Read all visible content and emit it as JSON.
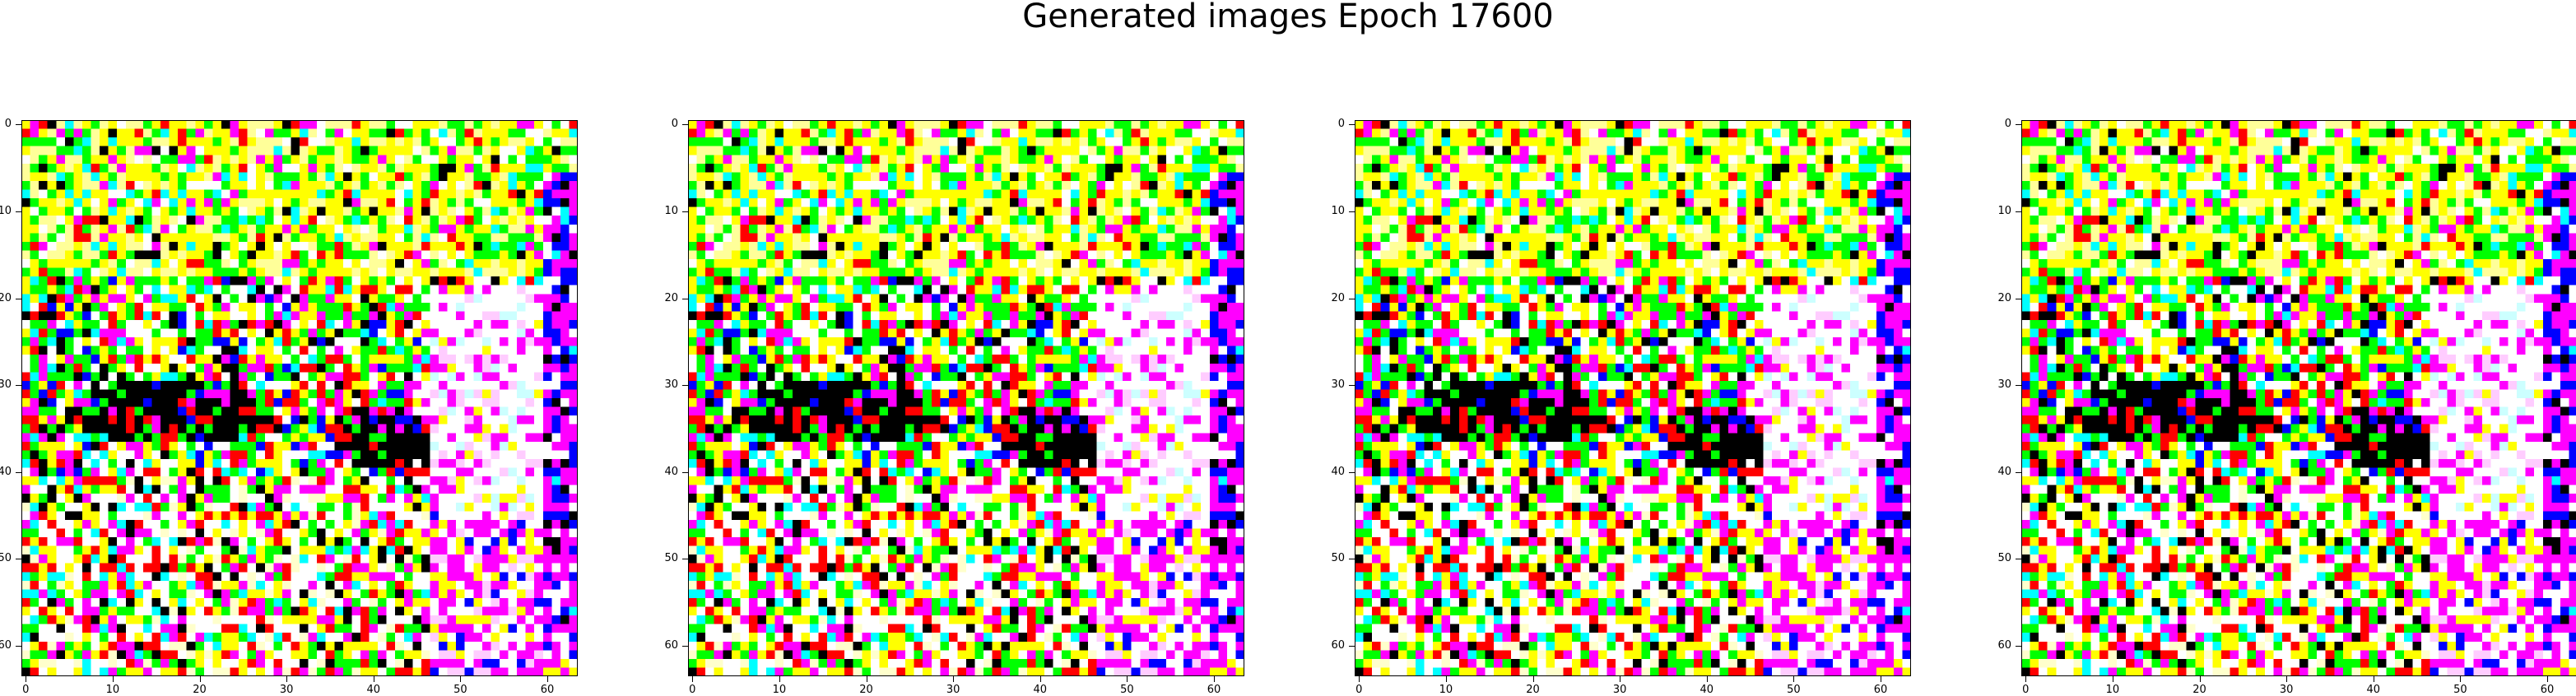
{
  "figure": {
    "title": "Generated images Epoch 17600"
  },
  "chart_data": [
    {
      "type": "heatmap",
      "title": "",
      "xlabel": "",
      "ylabel": "",
      "xlim": [
        -0.5,
        63.5
      ],
      "ylim": [
        63.5,
        -0.5
      ],
      "xticks": [
        "0",
        "10",
        "20",
        "30",
        "40",
        "50",
        "60"
      ],
      "yticks": [
        "0",
        "10",
        "20",
        "30",
        "40",
        "50",
        "60"
      ]
    },
    {
      "type": "heatmap",
      "title": "",
      "xlabel": "",
      "ylabel": "",
      "xlim": [
        -0.5,
        63.5
      ],
      "ylim": [
        63.5,
        -0.5
      ],
      "xticks": [
        "0",
        "10",
        "20",
        "30",
        "40",
        "50",
        "60"
      ],
      "yticks": [
        "0",
        "10",
        "20",
        "30",
        "40",
        "50",
        "60"
      ]
    },
    {
      "type": "heatmap",
      "title": "",
      "xlabel": "",
      "ylabel": "",
      "xlim": [
        -0.5,
        63.5
      ],
      "ylim": [
        63.5,
        -0.5
      ],
      "xticks": [
        "0",
        "10",
        "20",
        "30",
        "40",
        "50",
        "60"
      ],
      "yticks": [
        "0",
        "10",
        "20",
        "30",
        "40",
        "50",
        "60"
      ]
    },
    {
      "type": "heatmap",
      "title": "",
      "xlabel": "",
      "ylabel": "",
      "xlim": [
        -0.5,
        63.5
      ],
      "ylim": [
        63.5,
        -0.5
      ],
      "xticks": [
        "0",
        "10",
        "20",
        "30",
        "40",
        "50",
        "60"
      ],
      "yticks": [
        "0",
        "10",
        "20",
        "30",
        "40",
        "50",
        "60"
      ]
    }
  ],
  "palette": {
    "white": "#ffffff",
    "yellow": "#ffff00",
    "lightyellow": "#ffff99",
    "green": "#00ff00",
    "cyan": "#00ffff",
    "magenta": "#ff00ff",
    "red": "#ff0000",
    "blue": "#0000ff",
    "black": "#000000",
    "pink": "#ffccff",
    "lightcyan": "#ccffff",
    "cream": "#ffffcc"
  }
}
